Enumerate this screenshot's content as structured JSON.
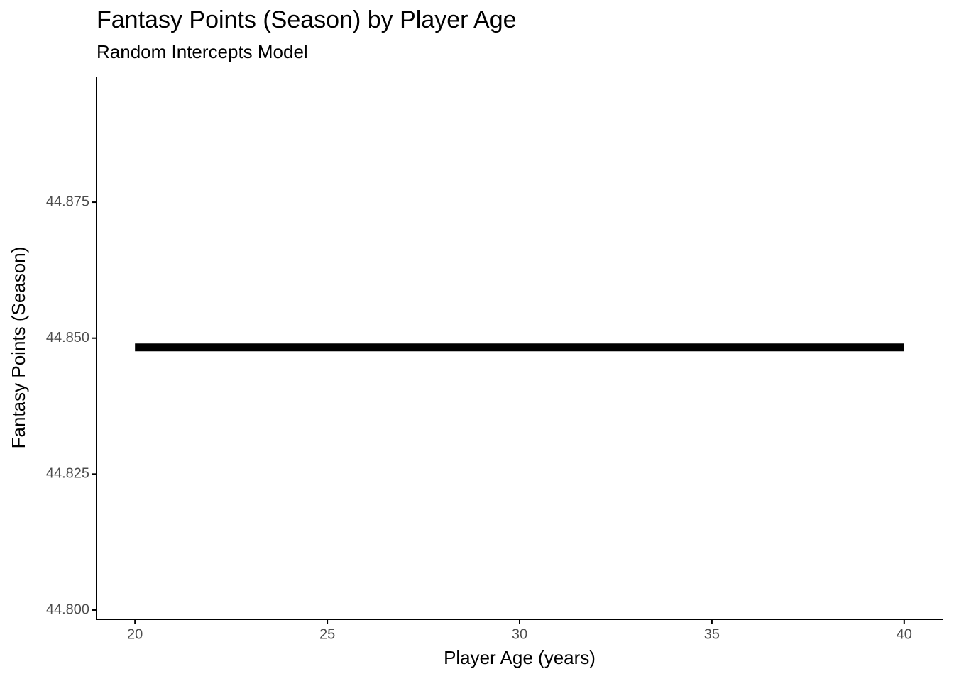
{
  "chart_data": {
    "type": "line",
    "title": "Fantasy Points (Season) by Player Age",
    "subtitle": "Random Intercepts Model",
    "x_label": "Player Age (years)",
    "y_label": "Fantasy Points (Season)",
    "x": [
      20,
      40
    ],
    "series": [
      {
        "color": "#000000",
        "values": [
          44.8483,
          44.8483
        ]
      }
    ],
    "xlim": [
      19,
      41
    ],
    "xticks": [
      20,
      25,
      30,
      35,
      40
    ],
    "ylim": [
      44.7983,
      44.8981
    ],
    "yticks": [
      {
        "value": 44.8,
        "label": "44.800"
      },
      {
        "value": 44.825,
        "label": "44.825"
      },
      {
        "value": 44.85,
        "label": "44.850"
      },
      {
        "value": 44.875,
        "label": "44.875"
      }
    ],
    "grid": false
  }
}
